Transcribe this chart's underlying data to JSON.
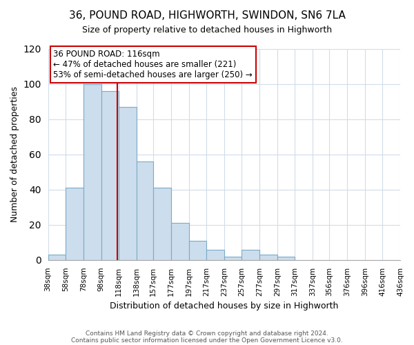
{
  "title": "36, POUND ROAD, HIGHWORTH, SWINDON, SN6 7LA",
  "subtitle": "Size of property relative to detached houses in Highworth",
  "xlabel": "Distribution of detached houses by size in Highworth",
  "ylabel": "Number of detached properties",
  "bar_color": "#ccdded",
  "bar_edge_color": "#7aaac8",
  "bins": [
    38,
    58,
    78,
    98,
    118,
    138,
    157,
    177,
    197,
    217,
    237,
    257,
    277,
    297,
    317,
    337,
    356,
    376,
    396,
    416,
    436
  ],
  "bin_labels": [
    "38sqm",
    "58sqm",
    "78sqm",
    "98sqm",
    "118sqm",
    "138sqm",
    "157sqm",
    "177sqm",
    "197sqm",
    "217sqm",
    "237sqm",
    "257sqm",
    "277sqm",
    "297sqm",
    "317sqm",
    "337sqm",
    "356sqm",
    "376sqm",
    "396sqm",
    "416sqm",
    "436sqm"
  ],
  "counts": [
    3,
    41,
    100,
    96,
    87,
    56,
    41,
    21,
    11,
    6,
    2,
    6,
    3,
    2,
    0,
    0,
    0,
    0,
    0,
    0
  ],
  "property_line_x": 116,
  "ylim": [
    0,
    120
  ],
  "yticks": [
    0,
    20,
    40,
    60,
    80,
    100,
    120
  ],
  "annotation_line1": "36 POUND ROAD: 116sqm",
  "annotation_line2": "← 47% of detached houses are smaller (221)",
  "annotation_line3": "53% of semi-detached houses are larger (250) →",
  "annotation_box_color": "#ffffff",
  "annotation_box_edge": "#cc0000",
  "vline_color": "#cc0000",
  "footnote1": "Contains HM Land Registry data © Crown copyright and database right 2024.",
  "footnote2": "Contains public sector information licensed under the Open Government Licence v3.0.",
  "background_color": "#ffffff",
  "grid_color": "#d0dce8"
}
